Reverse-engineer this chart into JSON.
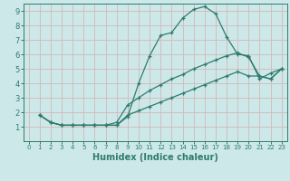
{
  "xlabel": "Humidex (Indice chaleur)",
  "bg_color": "#cde8e8",
  "grid_color": "#d4b8b8",
  "line_color": "#2e7b6e",
  "xlim": [
    -0.5,
    23.5
  ],
  "ylim": [
    0,
    9.5
  ],
  "xticks": [
    0,
    1,
    2,
    3,
    4,
    5,
    6,
    7,
    8,
    9,
    10,
    11,
    12,
    13,
    14,
    15,
    16,
    17,
    18,
    19,
    20,
    21,
    22,
    23
  ],
  "yticks": [
    1,
    2,
    3,
    4,
    5,
    6,
    7,
    8,
    9
  ],
  "line1_x": [
    1,
    2,
    3,
    4,
    5,
    6,
    7,
    8,
    9,
    10,
    11,
    12,
    13,
    14,
    15,
    16,
    17,
    18,
    19,
    20,
    21,
    22,
    23
  ],
  "line1_y": [
    1.8,
    1.3,
    1.1,
    1.1,
    1.1,
    1.1,
    1.1,
    1.1,
    1.7,
    4.0,
    5.9,
    7.3,
    7.5,
    8.5,
    9.1,
    9.3,
    8.8,
    7.2,
    6.0,
    5.9,
    4.3,
    4.7,
    5.0
  ],
  "line2_x": [
    1,
    2,
    3,
    4,
    5,
    6,
    7,
    8,
    9,
    10,
    11,
    12,
    13,
    14,
    15,
    16,
    17,
    18,
    19,
    20,
    21,
    22,
    23
  ],
  "line2_y": [
    1.8,
    1.3,
    1.1,
    1.1,
    1.1,
    1.1,
    1.1,
    1.3,
    2.5,
    3.0,
    3.5,
    3.9,
    4.3,
    4.6,
    5.0,
    5.3,
    5.6,
    5.9,
    6.1,
    5.8,
    4.5,
    4.3,
    5.0
  ],
  "line3_x": [
    1,
    2,
    3,
    4,
    5,
    6,
    7,
    8,
    9,
    10,
    11,
    12,
    13,
    14,
    15,
    16,
    17,
    18,
    19,
    20,
    21,
    22,
    23
  ],
  "line3_y": [
    1.8,
    1.3,
    1.1,
    1.1,
    1.1,
    1.1,
    1.1,
    1.1,
    1.8,
    2.1,
    2.4,
    2.7,
    3.0,
    3.3,
    3.6,
    3.9,
    4.2,
    4.5,
    4.8,
    4.5,
    4.5,
    4.3,
    5.0
  ]
}
